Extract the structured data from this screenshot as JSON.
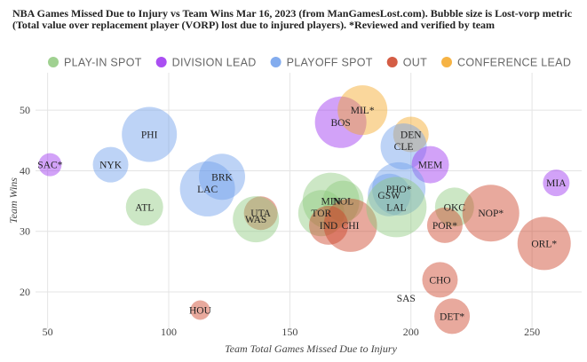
{
  "chart_data": {
    "type": "bubble",
    "title_lines": [
      "NBA Games Missed Due to Injury vs Team Wins Mar 16, 2023 (from ManGamesLost.com). Bubble size is Lost-vorp metric",
      "(Total value over replacement player (VORP) lost due to injured players). *Reviewed and verified by team"
    ],
    "xlabel": "Team Total Games Missed Due to Injury",
    "ylabel": "Team Wins",
    "xlim": [
      45,
      265
    ],
    "ylim": [
      14,
      55
    ],
    "xticks": [
      50,
      100,
      150,
      200,
      250
    ],
    "yticks": [
      20,
      30,
      40,
      50
    ],
    "legend_position": "top",
    "categories": [
      {
        "name": "PLAY-IN SPOT",
        "color": "#8fc97e"
      },
      {
        "name": "DIVISION LEAD",
        "color": "#9b30f0"
      },
      {
        "name": "PLAYOFF SPOT",
        "color": "#6d9eeb"
      },
      {
        "name": "OUT",
        "color": "#cc4125"
      },
      {
        "name": "CONFERENCE LEAD",
        "color": "#f5a623"
      }
    ],
    "points": [
      {
        "team": "SAC*",
        "x": 51,
        "y": 41,
        "size": 1.3,
        "category": "DIVISION LEAD"
      },
      {
        "team": "NYK",
        "x": 76,
        "y": 41,
        "size": 2.0,
        "category": "PLAYOFF SPOT"
      },
      {
        "team": "ATL",
        "x": 90,
        "y": 34,
        "size": 2.1,
        "category": "PLAY-IN SPOT"
      },
      {
        "team": "PHI",
        "x": 92,
        "y": 46,
        "size": 3.1,
        "category": "PLAYOFF SPOT"
      },
      {
        "team": "HOU",
        "x": 113,
        "y": 17,
        "size": 1.1,
        "category": "OUT"
      },
      {
        "team": "LAC",
        "x": 116,
        "y": 37,
        "size": 3.1,
        "category": "PLAYOFF SPOT"
      },
      {
        "team": "BRK",
        "x": 122,
        "y": 39,
        "size": 2.6,
        "category": "PLAYOFF SPOT"
      },
      {
        "team": "UTA",
        "x": 138,
        "y": 33,
        "size": 1.9,
        "category": "OUT"
      },
      {
        "team": "WAS",
        "x": 136,
        "y": 32,
        "size": 2.6,
        "category": "PLAY-IN SPOT"
      },
      {
        "team": "TOR",
        "x": 163,
        "y": 33,
        "size": 2.6,
        "category": "PLAY-IN SPOT"
      },
      {
        "team": "MIN",
        "x": 167,
        "y": 35,
        "size": 3.2,
        "category": "PLAY-IN SPOT"
      },
      {
        "team": "NOL",
        "x": 172,
        "y": 35,
        "size": 2.3,
        "category": "PLAY-IN SPOT"
      },
      {
        "team": "IND",
        "x": 166,
        "y": 31,
        "size": 2.2,
        "category": "OUT"
      },
      {
        "team": "CHI",
        "x": 175,
        "y": 31,
        "size": 3.0,
        "category": "OUT"
      },
      {
        "team": "BOS",
        "x": 171,
        "y": 48,
        "size": 2.9,
        "category": "DIVISION LEAD"
      },
      {
        "team": "MIL*",
        "x": 180,
        "y": 50,
        "size": 2.8,
        "category": "CONFERENCE LEAD"
      },
      {
        "team": "DEN",
        "x": 200,
        "y": 46,
        "size": 2.0,
        "category": "CONFERENCE LEAD"
      },
      {
        "team": "CLE",
        "x": 197,
        "y": 44,
        "size": 2.6,
        "category": "PLAYOFF SPOT"
      },
      {
        "team": "MEM",
        "x": 208,
        "y": 41,
        "size": 2.1,
        "category": "DIVISION LEAD"
      },
      {
        "team": "PHO*",
        "x": 195,
        "y": 37,
        "size": 3.0,
        "category": "PLAYOFF SPOT"
      },
      {
        "team": "GSW",
        "x": 191,
        "y": 36,
        "size": 2.4,
        "category": "PLAYOFF SPOT"
      },
      {
        "team": "LAL",
        "x": 194,
        "y": 34,
        "size": 3.4,
        "category": "PLAY-IN SPOT"
      },
      {
        "team": "OKC",
        "x": 218,
        "y": 34,
        "size": 2.2,
        "category": "PLAY-IN SPOT"
      },
      {
        "team": "POR*",
        "x": 214,
        "y": 31,
        "size": 2.0,
        "category": "OUT"
      },
      {
        "team": "NOP*",
        "x": 233,
        "y": 33,
        "size": 3.2,
        "category": "OUT"
      },
      {
        "team": "MIA",
        "x": 260,
        "y": 38,
        "size": 1.5,
        "category": "DIVISION LEAD"
      },
      {
        "team": "ORL*",
        "x": 255,
        "y": 28,
        "size": 3.0,
        "category": "OUT"
      },
      {
        "team": "CHO",
        "x": 212,
        "y": 22,
        "size": 2.0,
        "category": "OUT"
      },
      {
        "team": "SAS",
        "x": 198,
        "y": 19,
        "size": 0.0,
        "category": "OUT"
      },
      {
        "team": "DET*",
        "x": 217,
        "y": 16,
        "size": 2.0,
        "category": "OUT"
      }
    ]
  }
}
